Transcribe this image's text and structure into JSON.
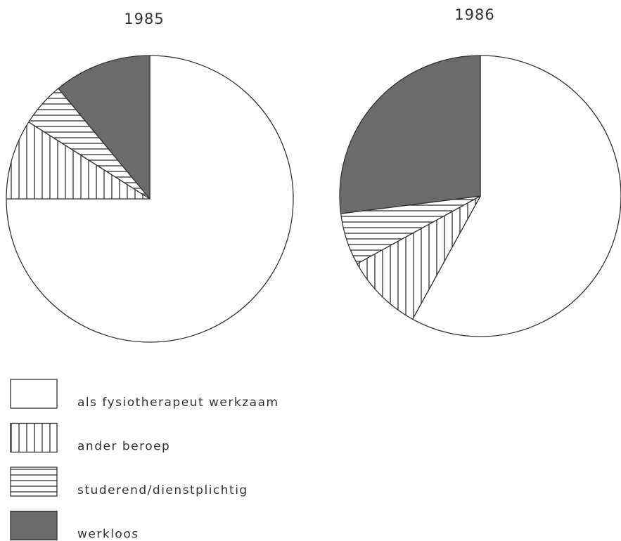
{
  "chart_data": [
    {
      "type": "pie",
      "title": "1985",
      "values": [
        75,
        9,
        5,
        11
      ]
    },
    {
      "type": "pie",
      "title": "1986",
      "values": [
        58,
        9,
        6,
        27
      ]
    }
  ],
  "legend": {
    "labels": [
      "als fysiotherapeut werkzaam",
      "ander beroep",
      "studerend/dienstplichtig",
      "werkloos"
    ],
    "fills": [
      "white",
      "vertical",
      "horizontal",
      "#6b6b6b"
    ]
  }
}
